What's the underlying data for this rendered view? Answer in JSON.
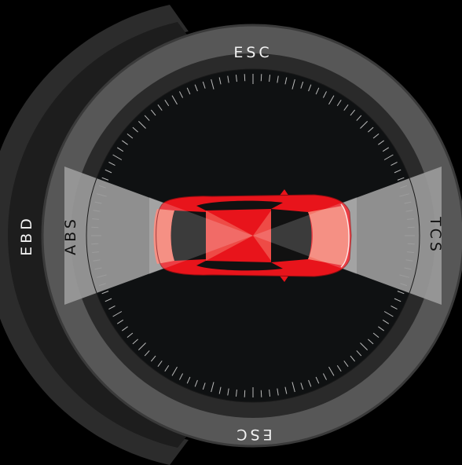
{
  "labels": {
    "esc_top": "ESC",
    "esc_bottom": "ESC",
    "abs": "ABS",
    "tcs": "TCS",
    "ebd": "EBD"
  },
  "colors": {
    "background": "#000000",
    "ebd_arc_outer": "#2c2c2c",
    "ebd_arc_inner": "#1c1c1c",
    "outer_ring": "#585858",
    "ring_gap": "#2b2b2b",
    "dial_face": "#0f1112",
    "tick": "#d9d9d9",
    "beam": "#9a9a9a",
    "car_body": "#e8141b",
    "car_highlight": "#f3786a",
    "label_light": "#f2f2f2",
    "label_dark": "#111111"
  }
}
